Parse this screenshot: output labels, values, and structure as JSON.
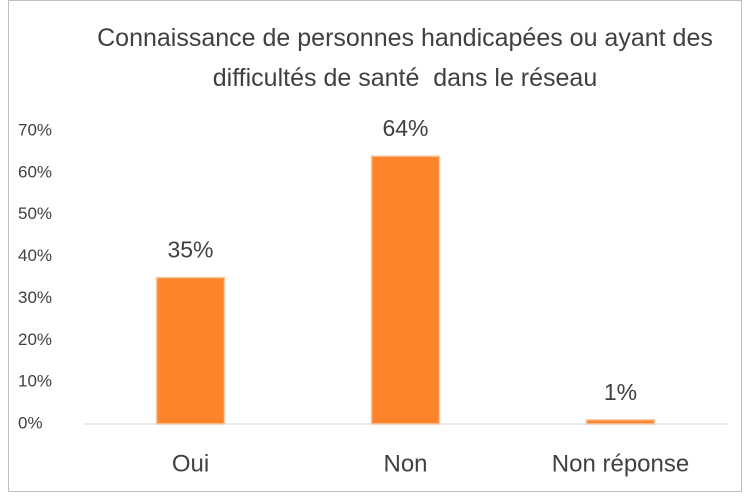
{
  "chart_data": {
    "type": "bar",
    "title": "Connaissance de personnes handicapées ou ayant des difficultés de santé  dans le réseau",
    "categories": [
      "Oui",
      "Non",
      "Non réponse"
    ],
    "values": [
      35,
      64,
      1
    ],
    "value_labels": [
      "35%",
      "64%",
      "1%"
    ],
    "color": "#fd842a",
    "ylim": [
      0,
      70
    ],
    "yticks": [
      {
        "value": 0,
        "label": "0%"
      },
      {
        "value": 10,
        "label": "10%"
      },
      {
        "value": 20,
        "label": "20%"
      },
      {
        "value": 30,
        "label": "30%"
      },
      {
        "value": 40,
        "label": "40%"
      },
      {
        "value": 50,
        "label": "50%"
      },
      {
        "value": 60,
        "label": "60%"
      },
      {
        "value": 70,
        "label": "70%"
      }
    ],
    "grid": false
  }
}
